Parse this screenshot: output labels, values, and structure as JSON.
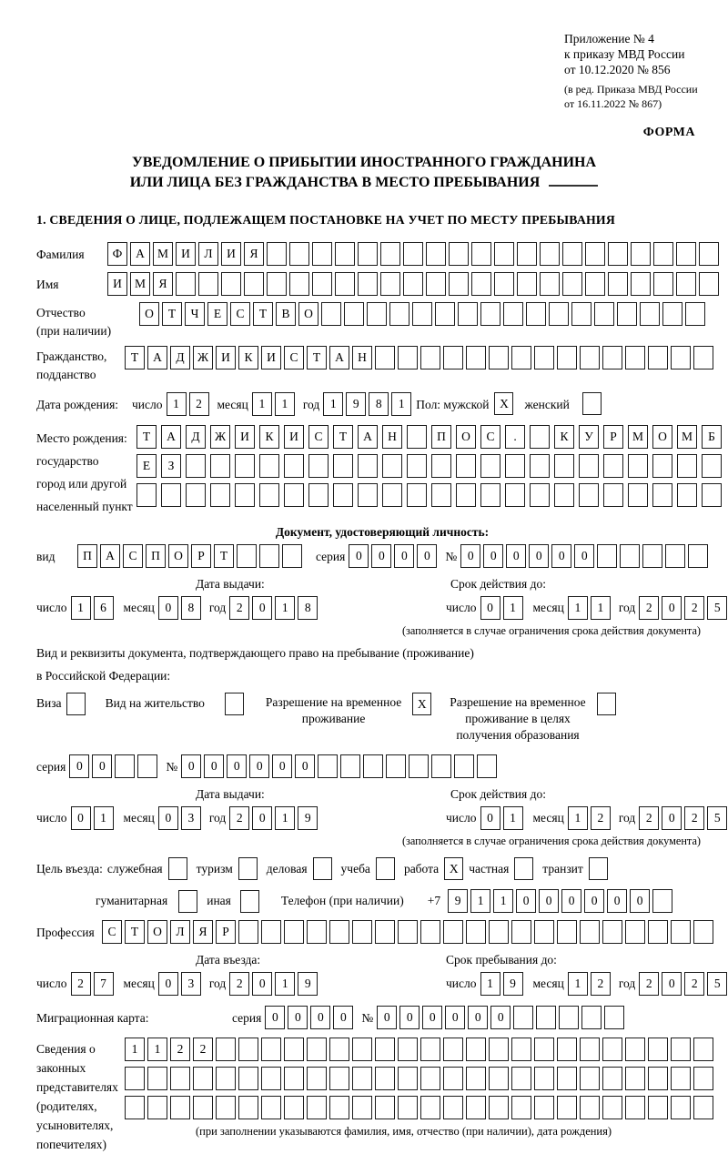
{
  "header": {
    "lines": [
      "Приложение № 4",
      "к приказу МВД России",
      "от 10.12.2020 № 856"
    ],
    "amendment": [
      "(в ред. Приказа МВД России",
      "от 16.11.2022 № 867)"
    ],
    "form_label": "ФОРМА"
  },
  "title": {
    "line1": "УВЕДОМЛЕНИЕ О ПРИБЫТИИ ИНОСТРАННОГО ГРАЖДАНИНА",
    "line2": "ИЛИ ЛИЦА БЕЗ ГРАЖДАНСТВА В МЕСТО ПРЕБЫВАНИЯ"
  },
  "section1_heading": "1. СВЕДЕНИЯ О ЛИЦЕ, ПОДЛЕЖАЩЕМ ПОСТАНОВКЕ НА УЧЕТ ПО МЕСТУ ПРЕБЫВАНИЯ",
  "labels": {
    "day": "число",
    "month": "месяц",
    "year": "год",
    "seriya": "серия",
    "number": "№"
  },
  "fields": {
    "surname": {
      "label": "Фамилия",
      "cells": [
        "Ф",
        "А",
        "М",
        "И",
        "Л",
        "И",
        "Я",
        "",
        "",
        "",
        "",
        "",
        "",
        "",
        "",
        "",
        "",
        "",
        "",
        "",
        "",
        "",
        "",
        "",
        "",
        "",
        ""
      ]
    },
    "name": {
      "label": "Имя",
      "cells": [
        "И",
        "М",
        "Я",
        "",
        "",
        "",
        "",
        "",
        "",
        "",
        "",
        "",
        "",
        "",
        "",
        "",
        "",
        "",
        "",
        "",
        "",
        "",
        "",
        "",
        "",
        "",
        ""
      ]
    },
    "patronymic": {
      "label": "Отчество",
      "label2": "(при наличии)",
      "cells": [
        "О",
        "Т",
        "Ч",
        "Е",
        "С",
        "Т",
        "В",
        "О",
        "",
        "",
        "",
        "",
        "",
        "",
        "",
        "",
        "",
        "",
        "",
        "",
        "",
        "",
        "",
        "",
        ""
      ]
    },
    "citizenship": {
      "label": "Гражданство,",
      "label2": "подданство",
      "cells": [
        "Т",
        "А",
        "Д",
        "Ж",
        "И",
        "К",
        "И",
        "С",
        "Т",
        "А",
        "Н",
        "",
        "",
        "",
        "",
        "",
        "",
        "",
        "",
        "",
        "",
        "",
        "",
        "",
        "",
        ""
      ]
    },
    "birth_date": {
      "label": "Дата рождения:",
      "day": [
        "1",
        "2"
      ],
      "month": [
        "1",
        "1"
      ],
      "year": [
        "1",
        "9",
        "8",
        "1"
      ]
    },
    "gender": {
      "male_label": "Пол: мужской",
      "male_value": "X",
      "female_label": "женский",
      "female_value": ""
    },
    "birthplace": {
      "labels": [
        "Место рождения:",
        "государство",
        "город или другой",
        "населенный пункт"
      ],
      "row1": [
        "Т",
        "А",
        "Д",
        "Ж",
        "И",
        "К",
        "И",
        "С",
        "Т",
        "А",
        "Н",
        "",
        "П",
        "О",
        "С",
        ".",
        "",
        "К",
        "У",
        "Р",
        "М",
        "О",
        "М",
        "Б"
      ],
      "row2": [
        "Е",
        "З",
        "",
        "",
        "",
        "",
        "",
        "",
        "",
        "",
        "",
        "",
        "",
        "",
        "",
        "",
        "",
        "",
        "",
        "",
        "",
        "",
        "",
        ""
      ],
      "row3": [
        "",
        "",
        "",
        "",
        "",
        "",
        "",
        "",
        "",
        "",
        "",
        "",
        "",
        "",
        "",
        "",
        "",
        "",
        "",
        "",
        "",
        "",
        "",
        ""
      ]
    }
  },
  "identity_doc": {
    "heading": "Документ, удостоверяющий личность:",
    "vid_label": "вид",
    "vid": [
      "П",
      "А",
      "С",
      "П",
      "О",
      "Р",
      "Т",
      "",
      "",
      ""
    ],
    "seriya": [
      "0",
      "0",
      "0",
      "0"
    ],
    "number": [
      "0",
      "0",
      "0",
      "0",
      "0",
      "0",
      "",
      "",
      "",
      "",
      ""
    ],
    "issue_label": "Дата выдачи:",
    "issue": {
      "day": [
        "1",
        "6"
      ],
      "month": [
        "0",
        "8"
      ],
      "year": [
        "2",
        "0",
        "1",
        "8"
      ]
    },
    "expiry_label": "Срок действия до:",
    "expiry": {
      "day": [
        "0",
        "1"
      ],
      "month": [
        "1",
        "1"
      ],
      "year": [
        "2",
        "0",
        "2",
        "5"
      ]
    },
    "note": "(заполняется в случае ограничения срока действия документа)"
  },
  "stay_doc": {
    "line1": "Вид и реквизиты документа, подтверждающего право на пребывание (проживание)",
    "line2": "в Российской Федерации:",
    "visa": {
      "label": "Виза",
      "value": ""
    },
    "residence_permit": {
      "label": "Вид на жительство",
      "value": ""
    },
    "temp_permit": {
      "line1": "Разрешение на временное",
      "line2": "проживание",
      "value": "X"
    },
    "temp_permit_edu": {
      "line1": "Разрешение на временное",
      "line2": "проживание в целях",
      "line3": "получения образования",
      "value": ""
    },
    "seriya": [
      "0",
      "0",
      "",
      ""
    ],
    "number": [
      "0",
      "0",
      "0",
      "0",
      "0",
      "0",
      "",
      "",
      "",
      "",
      "",
      "",
      "",
      ""
    ],
    "issue_label": "Дата выдачи:",
    "issue": {
      "day": [
        "0",
        "1"
      ],
      "month": [
        "0",
        "3"
      ],
      "year": [
        "2",
        "0",
        "1",
        "9"
      ]
    },
    "expiry_label": "Срок действия до:",
    "expiry": {
      "day": [
        "0",
        "1"
      ],
      "month": [
        "1",
        "2"
      ],
      "year": [
        "2",
        "0",
        "2",
        "5"
      ]
    },
    "note": "(заполняется в случае ограничения срока действия документа)"
  },
  "visit": {
    "purpose_label": "Цель въезда:",
    "purposes": [
      {
        "label": "служебная",
        "value": ""
      },
      {
        "label": "туризм",
        "value": ""
      },
      {
        "label": "деловая",
        "value": ""
      },
      {
        "label": "учеба",
        "value": ""
      },
      {
        "label": "работа",
        "value": "X"
      },
      {
        "label": "частная",
        "value": ""
      },
      {
        "label": "транзит",
        "value": ""
      }
    ],
    "purposes2": [
      {
        "label": "гуманитарная",
        "value": ""
      },
      {
        "label": "иная",
        "value": ""
      }
    ],
    "phone_label": "Телефон (при наличии)",
    "phone_prefix": "+7",
    "phone": [
      "9",
      "1",
      "1",
      "0",
      "0",
      "0",
      "0",
      "0",
      "0",
      ""
    ],
    "profession_label": "Профессия",
    "profession": [
      "С",
      "Т",
      "О",
      "Л",
      "Я",
      "Р",
      "",
      "",
      "",
      "",
      "",
      "",
      "",
      "",
      "",
      "",
      "",
      "",
      "",
      "",
      "",
      "",
      "",
      "",
      "",
      "",
      ""
    ],
    "entry_label": "Дата въезда:",
    "entry": {
      "day": [
        "2",
        "7"
      ],
      "month": [
        "0",
        "3"
      ],
      "year": [
        "2",
        "0",
        "1",
        "9"
      ]
    },
    "stay_until_label": "Срок пребывания до:",
    "stay_until": {
      "day": [
        "1",
        "9"
      ],
      "month": [
        "1",
        "2"
      ],
      "year": [
        "2",
        "0",
        "2",
        "5"
      ]
    }
  },
  "migration_card": {
    "label": "Миграционная карта:",
    "seriya": [
      "0",
      "0",
      "0",
      "0"
    ],
    "number": [
      "0",
      "0",
      "0",
      "0",
      "0",
      "0",
      "",
      "",
      "",
      "",
      ""
    ]
  },
  "representatives": {
    "labels": [
      "Сведения о",
      "законных",
      "представителях",
      "(родителях,",
      "усыновителях,",
      "попечителях)"
    ],
    "row1": [
      "1",
      "1",
      "2",
      "2",
      "",
      "",
      "",
      "",
      "",
      "",
      "",
      "",
      "",
      "",
      "",
      "",
      "",
      "",
      "",
      "",
      "",
      "",
      "",
      "",
      "",
      ""
    ],
    "row2": [
      "",
      "",
      "",
      "",
      "",
      "",
      "",
      "",
      "",
      "",
      "",
      "",
      "",
      "",
      "",
      "",
      "",
      "",
      "",
      "",
      "",
      "",
      "",
      "",
      "",
      ""
    ],
    "row3": [
      "",
      "",
      "",
      "",
      "",
      "",
      "",
      "",
      "",
      "",
      "",
      "",
      "",
      "",
      "",
      "",
      "",
      "",
      "",
      "",
      "",
      "",
      "",
      "",
      "",
      ""
    ],
    "note": "(при заполнении указываются фамилия, имя, отчество (при наличии), дата рождения)"
  }
}
